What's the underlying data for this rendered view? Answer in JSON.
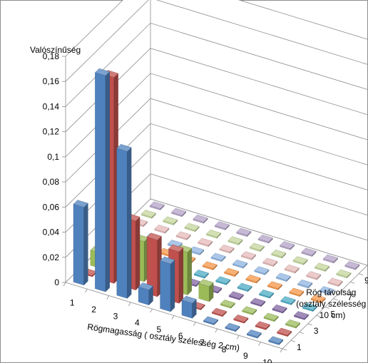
{
  "chart_data": {
    "type": "bar3d",
    "ylabel": "Valószínűség",
    "xlabel": "Rögmagasság  ( osztály szélesség  2 cm)",
    "zlabel": [
      "Rög távolság",
      "(osztály szélesség",
      "10 cm)"
    ],
    "ylim": [
      0,
      0.18
    ],
    "yticks": [
      "0",
      "0,02",
      "0,04",
      "0,06",
      "0,08",
      "0,1",
      "0,12",
      "0,14",
      "0,16",
      "0,18"
    ],
    "x_categories": [
      "1",
      "2",
      "3",
      "4",
      "5",
      "6",
      "7",
      "8",
      "9",
      "10"
    ],
    "z_tick_labels": [
      "1",
      "3",
      "5",
      "7",
      "9"
    ],
    "legend": "none",
    "grid": true,
    "series": [
      {
        "name": "1",
        "color": "#4F81BD",
        "values": [
          0.062,
          0.172,
          0.117,
          0.012,
          0.038,
          0.012,
          0.001,
          0.001,
          0.001,
          0.001
        ]
      },
      {
        "name": "2",
        "color": "#C0504D",
        "values": [
          0.001,
          0.164,
          0.055,
          0.045,
          0.041,
          0.001,
          0.001,
          0.001,
          0.001,
          0.001
        ]
      },
      {
        "name": "3",
        "color": "#9BBB59",
        "values": [
          0.012,
          0.001,
          0.032,
          0.014,
          0.034,
          0.012,
          0.001,
          0.001,
          0.001,
          0.001
        ]
      },
      {
        "name": "4",
        "color": "#8064A2",
        "values": [
          0.001,
          0.001,
          0.001,
          0.012,
          0.001,
          0.001,
          0.001,
          0.001,
          0.001,
          0.001
        ]
      },
      {
        "name": "5",
        "color": "#4BACC6",
        "values": [
          0.001,
          0.001,
          0.001,
          0.012,
          0.001,
          0.001,
          0.001,
          0.001,
          0.001,
          0.001
        ]
      },
      {
        "name": "6",
        "color": "#F79646",
        "values": [
          0.001,
          0.001,
          0.001,
          0.001,
          0.001,
          0.001,
          0.001,
          0.001,
          0.001,
          0.001
        ]
      },
      {
        "name": "7",
        "color": "#8DB4E2",
        "values": [
          0.001,
          0.001,
          0.001,
          0.001,
          0.001,
          0.001,
          0.001,
          0.001,
          0.001,
          0.001
        ]
      },
      {
        "name": "8",
        "color": "#E6B9B8",
        "values": [
          0.001,
          0.001,
          0.001,
          0.001,
          0.001,
          0.001,
          0.001,
          0.001,
          0.001,
          0.001
        ]
      },
      {
        "name": "9",
        "color": "#C3D69B",
        "values": [
          0.001,
          0.001,
          0.001,
          0.001,
          0.001,
          0.001,
          0.001,
          0.001,
          0.001,
          0.001
        ]
      },
      {
        "name": "10",
        "color": "#B3A2C7",
        "values": [
          0.001,
          0.001,
          0.001,
          0.001,
          0.001,
          0.001,
          0.001,
          0.001,
          0.001,
          0.001
        ]
      }
    ]
  }
}
